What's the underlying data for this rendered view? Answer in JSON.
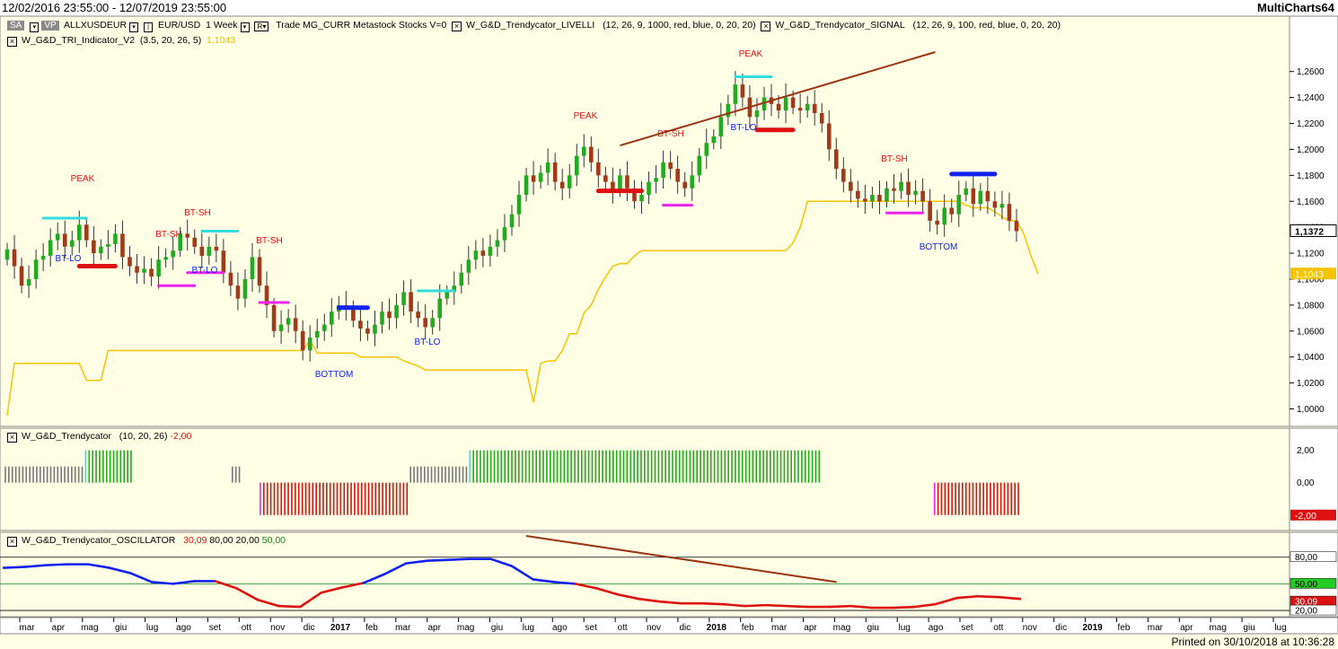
{
  "header": {
    "range": "12/02/2016 23:55:00 - 12/07/2019 23:55:00",
    "brand": "MultiCharts64",
    "toolbar": {
      "sa": "SA",
      "vp": "VP",
      "symbol": "ALLXUSDEUR",
      "instrument": "EUR/USD",
      "interval": "1 Week",
      "r": "R",
      "source": "Trade  MG_CURR  Metastock  Stocks  V=0"
    },
    "study1": "W_G&D_Trendycator_LIVELLI",
    "study1_params": "(12, 26, 9, 1000, red, blue, 0, 20, 20)",
    "study2": "W_G&D_Trendycator_SIGNAL",
    "study2_params": "(12, 26, 9, 100, red, blue, 0, 20, 20)",
    "study3": "W_G&D_TRI_Indicator_V2",
    "study3_params": "(3.5, 20, 26, 5)",
    "study3_value": "1,1043"
  },
  "panel2": {
    "title": "W_G&D_Trendycator",
    "params": "(10, 20, 26)",
    "value": "-2,00"
  },
  "panel3": {
    "title": "W_G&D_Trendycator_OSCILLATOR",
    "value": "30,09",
    "p1": "80,00",
    "p2": "20,00",
    "p3": "50,00"
  },
  "footer": "Printed on 30/10/2018 at 10:36:28",
  "colors": {
    "bull": "#22aa22",
    "bear": "#a03a1a",
    "stop": "#f5c400",
    "red": "#dd1111",
    "blue": "#1122ee",
    "cyan": "#33dddd",
    "magenta": "#ee22ee",
    "gray": "#777777",
    "trend": "#993311"
  },
  "chart_data": [
    {
      "type": "candlestick",
      "title": "ALLXUSDEUR",
      "y_ticks": [
        "1,2600",
        "1,2400",
        "1,2200",
        "1,2000",
        "1,1800",
        "1,1600",
        "1,1400",
        "1,1200",
        "1,1000",
        "1,0800",
        "1,0600",
        "1,0400",
        "1,0200",
        "1,0000"
      ],
      "ylim": [
        0.99,
        1.284
      ],
      "last_price": "1,1372",
      "stop_value": "1,1043",
      "x_labels": [
        "mar",
        "apr",
        "mag",
        "giu",
        "lug",
        "ago",
        "set",
        "ott",
        "nov",
        "dic",
        "2017",
        "feb",
        "mar",
        "apr",
        "mag",
        "giu",
        "lug",
        "ago",
        "set",
        "ott",
        "nov",
        "dic",
        "2018",
        "feb",
        "mar",
        "apr",
        "mag",
        "giu",
        "lug",
        "ago",
        "set",
        "ott",
        "nov",
        "dic",
        "2019",
        "feb",
        "mar",
        "apr",
        "mag",
        "giu",
        "lug"
      ],
      "close": [
        1.123,
        1.11,
        1.095,
        1.1,
        1.115,
        1.118,
        1.13,
        1.135,
        1.125,
        1.13,
        1.142,
        1.13,
        1.12,
        1.125,
        1.127,
        1.135,
        1.117,
        1.11,
        1.105,
        1.108,
        1.102,
        1.115,
        1.117,
        1.122,
        1.135,
        1.132,
        1.125,
        1.118,
        1.125,
        1.122,
        1.105,
        1.095,
        1.085,
        1.1,
        1.117,
        1.095,
        1.08,
        1.06,
        1.065,
        1.07,
        1.06,
        1.045,
        1.055,
        1.06,
        1.065,
        1.075,
        1.08,
        1.078,
        1.068,
        1.062,
        1.058,
        1.065,
        1.075,
        1.07,
        1.08,
        1.09,
        1.075,
        1.07,
        1.063,
        1.07,
        1.085,
        1.09,
        1.095,
        1.105,
        1.115,
        1.122,
        1.118,
        1.125,
        1.13,
        1.14,
        1.15,
        1.165,
        1.18,
        1.175,
        1.182,
        1.19,
        1.175,
        1.17,
        1.18,
        1.195,
        1.202,
        1.19,
        1.18,
        1.175,
        1.168,
        1.18,
        1.17,
        1.16,
        1.165,
        1.175,
        1.178,
        1.19,
        1.185,
        1.175,
        1.17,
        1.18,
        1.195,
        1.205,
        1.21,
        1.225,
        1.235,
        1.25,
        1.24,
        1.225,
        1.23,
        1.24,
        1.235,
        1.23,
        1.24,
        1.232,
        1.23,
        1.235,
        1.228,
        1.22,
        1.2,
        1.185,
        1.175,
        1.168,
        1.162,
        1.16,
        1.165,
        1.16,
        1.17,
        1.168,
        1.175,
        1.165,
        1.168,
        1.16,
        1.145,
        1.142,
        1.155,
        1.15,
        1.165,
        1.17,
        1.158,
        1.168,
        1.16,
        1.155,
        1.158,
        1.145,
        1.137
      ],
      "series": [
        {
          "name": "W_G&D_TRI_Indicator_V2",
          "values": [
            0.995,
            1.035,
            1.035,
            1.035,
            1.035,
            1.035,
            1.035,
            1.035,
            1.035,
            1.035,
            1.035,
            1.022,
            1.022,
            1.022,
            1.045,
            1.045,
            1.045,
            1.045,
            1.045,
            1.045,
            1.045,
            1.045,
            1.045,
            1.045,
            1.045,
            1.045,
            1.045,
            1.045,
            1.045,
            1.045,
            1.045,
            1.045,
            1.045,
            1.045,
            1.045,
            1.045,
            1.045,
            1.045,
            1.045,
            1.045,
            1.045,
            1.045,
            1.053,
            1.043,
            1.043,
            1.043,
            1.043,
            1.043,
            1.043,
            1.04,
            1.04,
            1.04,
            1.04,
            1.04,
            1.04,
            1.037,
            1.035,
            1.033,
            1.03,
            1.03,
            1.03,
            1.03,
            1.03,
            1.03,
            1.03,
            1.03,
            1.03,
            1.03,
            1.03,
            1.03,
            1.03,
            1.03,
            1.03,
            1.005,
            1.035,
            1.037,
            1.037,
            1.045,
            1.058,
            1.058,
            1.074,
            1.08,
            1.092,
            1.102,
            1.11,
            1.112,
            1.112,
            1.118,
            1.122,
            1.122,
            1.122,
            1.122,
            1.122,
            1.122,
            1.122,
            1.122,
            1.122,
            1.122,
            1.122,
            1.122,
            1.122,
            1.122,
            1.122,
            1.122,
            1.122,
            1.122,
            1.122,
            1.122,
            1.122,
            1.128,
            1.14,
            1.16,
            1.16,
            1.16,
            1.16,
            1.16,
            1.16,
            1.16,
            1.16,
            1.16,
            1.16,
            1.16,
            1.16,
            1.16,
            1.16,
            1.16,
            1.16,
            1.16,
            1.16,
            1.16,
            1.16,
            1.16,
            1.16,
            1.157,
            1.155,
            1.155,
            1.155,
            1.152,
            1.148,
            1.145,
            1.145,
            1.135,
            1.118,
            1.104
          ]
        }
      ],
      "annotations": [
        {
          "text": "PEAK",
          "color": "red"
        },
        {
          "text": "BT-LO",
          "color": "blue"
        },
        {
          "text": "BT-SH",
          "color": "red"
        },
        {
          "text": "BT-SH",
          "color": "red"
        },
        {
          "text": "BT-LO",
          "color": "blue"
        },
        {
          "text": "BT-SH",
          "color": "red"
        },
        {
          "text": "BOTTOM",
          "color": "blue"
        },
        {
          "text": "BT-LO",
          "color": "blue"
        },
        {
          "text": "PEAK",
          "color": "red"
        },
        {
          "text": "BT-SH",
          "color": "red"
        },
        {
          "text": "PEAK",
          "color": "red"
        },
        {
          "text": "BT-LO",
          "color": "blue"
        },
        {
          "text": "BT-SH",
          "color": "red"
        },
        {
          "text": "BOTTOM",
          "color": "blue"
        }
      ]
    },
    {
      "type": "bar",
      "title": "W_G&D_Trendycator",
      "y_ticks": [
        "2,00",
        "0,00"
      ],
      "ylim": [
        -2.9,
        3.2
      ],
      "last_value": "-2,00",
      "segments": [
        {
          "count": 23,
          "value": 1,
          "color": "gray"
        },
        {
          "count": 1,
          "value": 2,
          "color": "cyan"
        },
        {
          "count": 13,
          "value": 2,
          "color": "green"
        },
        {
          "count": 28,
          "value": 0,
          "color": "gray"
        },
        {
          "count": 3,
          "value": 1,
          "color": "gray"
        },
        {
          "count": 5,
          "value": 0,
          "color": "gray"
        },
        {
          "count": 1,
          "value": -2,
          "color": "magenta"
        },
        {
          "count": 42,
          "value": -2,
          "color": "red"
        },
        {
          "count": 17,
          "value": 1,
          "color": "gray"
        },
        {
          "count": 1,
          "value": 2,
          "color": "cyan"
        },
        {
          "count": 100,
          "value": 2,
          "color": "green"
        },
        {
          "count": 32,
          "value": 0,
          "color": "gray"
        },
        {
          "count": 1,
          "value": -2,
          "color": "magenta"
        },
        {
          "count": 24,
          "value": -2,
          "color": "red"
        }
      ]
    },
    {
      "type": "line",
      "title": "W_G&D_Trendycator_OSCILLATOR",
      "y_ticks": [
        "80,00",
        "50,00",
        "30,09",
        "20,00"
      ],
      "ylim": [
        14,
        106
      ],
      "levels": [
        80,
        50,
        20
      ],
      "x": [
        0,
        6,
        12,
        18,
        24,
        30,
        36,
        42,
        48,
        54,
        60,
        66,
        72,
        78,
        84,
        90,
        96,
        102,
        108,
        114,
        120,
        126,
        132,
        138,
        144,
        150
      ],
      "values": [
        68,
        69,
        71,
        72,
        72,
        68,
        62,
        52,
        50,
        53,
        53,
        45,
        32,
        25,
        24,
        40,
        46,
        51,
        61,
        73,
        76,
        77,
        78,
        78,
        70,
        55
      ],
      "x2": [
        150,
        156,
        162,
        168,
        174,
        180,
        186,
        192,
        198,
        204,
        210,
        216,
        222,
        228,
        234,
        240,
        246,
        252,
        258,
        264,
        270,
        276,
        282,
        288
      ],
      "values2": [
        55,
        52,
        50,
        45,
        38,
        33,
        30,
        28,
        28,
        27,
        25,
        26,
        25,
        24,
        24,
        25,
        23,
        23,
        24,
        27,
        34,
        36,
        35,
        33
      ],
      "trend_color": "#993311"
    }
  ]
}
